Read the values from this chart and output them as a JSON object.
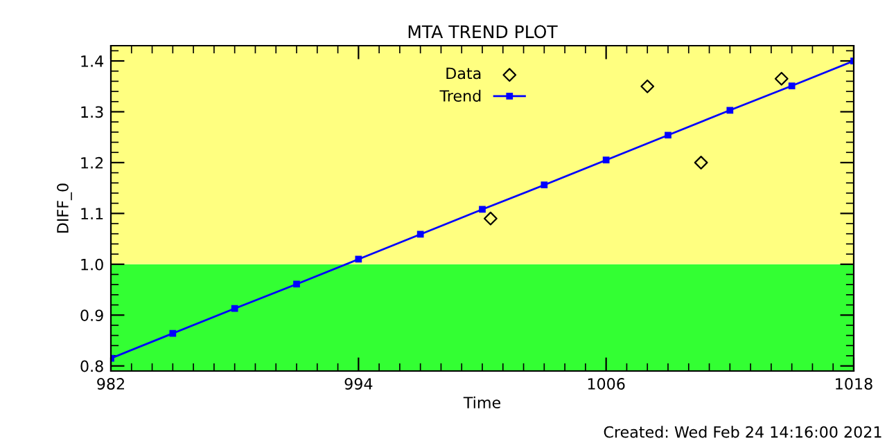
{
  "chart_data": {
    "type": "scatter",
    "title": "MTA TREND PLOT",
    "xlabel": "Time",
    "ylabel": "DIFF_0",
    "annotations": [
      "Created: Wed Feb 24 14:16:00 2021"
    ],
    "series": [
      {
        "name": "Data",
        "type": "scatter",
        "color": "#000000",
        "marker": "diamond",
        "x": [
          1000.4,
          1008.0,
          1010.6,
          1014.5
        ],
        "values": [
          1.09,
          1.35,
          1.2,
          1.365
        ]
      },
      {
        "name": "Trend",
        "type": "line",
        "color": "#0000ff",
        "marker": "square",
        "x": [
          982,
          985,
          988,
          991,
          994,
          997,
          1000,
          1003,
          1006,
          1009,
          1012,
          1015,
          1018
        ],
        "values": [
          0.815,
          0.864,
          0.913,
          0.961,
          1.01,
          1.059,
          1.108,
          1.156,
          1.205,
          1.254,
          1.303,
          1.351,
          1.4
        ]
      }
    ],
    "bands": [
      {
        "axis": "y",
        "from": 0.79,
        "to": 1.0,
        "color": "#33ff33"
      },
      {
        "axis": "y",
        "from": 1.0,
        "to": 1.43,
        "color": "#ffff80"
      }
    ],
    "xlim": [
      982,
      1018
    ],
    "xticks": [
      982,
      994,
      1006,
      1018
    ],
    "ylim": [
      0.79,
      1.43
    ],
    "yticks": [
      0.8,
      0.9,
      {
        "value": 1,
        "label": "1.0"
      },
      1.1,
      1.2,
      1.3,
      1.4
    ],
    "grid": false,
    "legend": "top"
  }
}
